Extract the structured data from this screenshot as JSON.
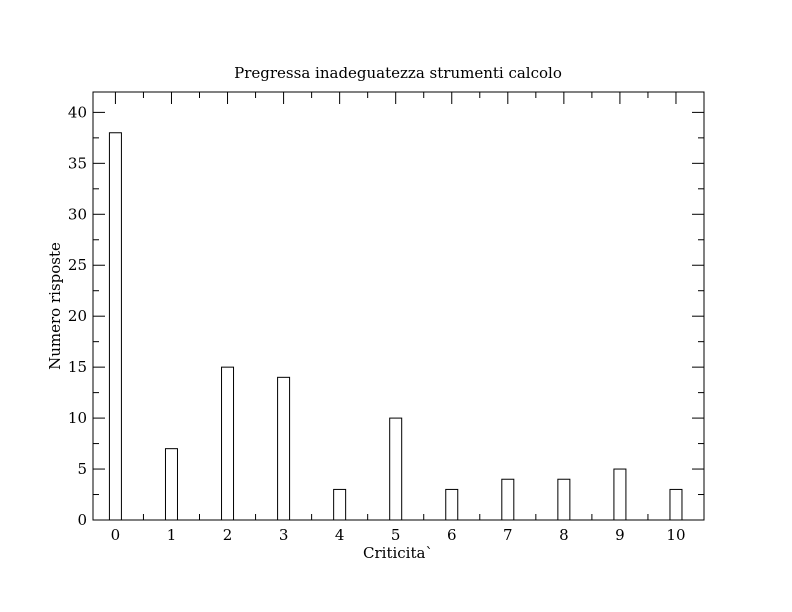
{
  "chart_data": {
    "type": "bar",
    "title": "Pregressa inadeguatezza strumenti calcolo",
    "xlabel": "Criticita`",
    "ylabel": "Numero risposte",
    "categories": [
      "0",
      "1",
      "2",
      "3",
      "4",
      "5",
      "6",
      "7",
      "8",
      "9",
      "10"
    ],
    "values": [
      38,
      7,
      15,
      14,
      3,
      10,
      3,
      4,
      4,
      5,
      3
    ],
    "xlim": [
      -0.4,
      10.5
    ],
    "ylim": [
      0,
      42
    ],
    "yticks": [
      0,
      5,
      10,
      15,
      20,
      25,
      30,
      35,
      40
    ],
    "grid": false,
    "legend": "none"
  }
}
